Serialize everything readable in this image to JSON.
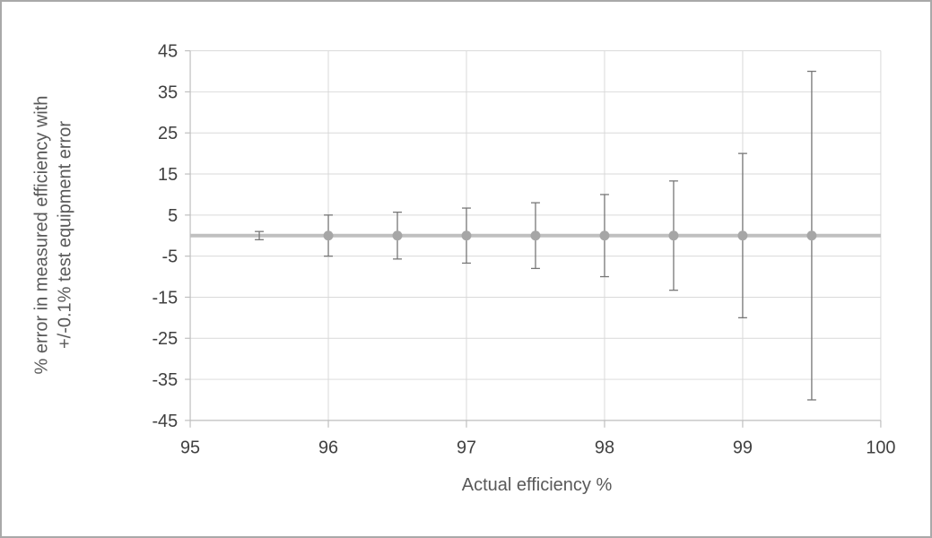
{
  "chart_data": {
    "type": "scatter",
    "title": "",
    "xlabel": "Actual efficiency %",
    "ylabel": "% error in measured efficiency with +/-0.1% test equipment error",
    "ylabel_line1": "% error in measured efficiency with",
    "ylabel_line2": "+/-0.1% test equipment error",
    "xlim": [
      95,
      100
    ],
    "ylim": [
      -45,
      45
    ],
    "x_ticks": [
      95,
      96,
      97,
      98,
      99,
      100
    ],
    "y_ticks": [
      45,
      35,
      25,
      15,
      5,
      -5,
      -15,
      -25,
      -35,
      -45
    ],
    "grid": true,
    "legend": "none",
    "series": [
      {
        "points": [
          {
            "x": 95,
            "y": 0,
            "err": 0,
            "marker": false
          },
          {
            "x": 95.5,
            "y": 0,
            "err": 1,
            "marker": false
          },
          {
            "x": 96,
            "y": 0,
            "err": 5,
            "marker": true
          },
          {
            "x": 96.5,
            "y": 0,
            "err": 5.7,
            "marker": true
          },
          {
            "x": 97,
            "y": 0,
            "err": 6.7,
            "marker": true
          },
          {
            "x": 97.5,
            "y": 0,
            "err": 8,
            "marker": true
          },
          {
            "x": 98,
            "y": 0,
            "err": 10,
            "marker": true
          },
          {
            "x": 98.5,
            "y": 0,
            "err": 13.3,
            "marker": true
          },
          {
            "x": 99,
            "y": 0,
            "err": 20,
            "marker": true
          },
          {
            "x": 99.5,
            "y": 0,
            "err": 40,
            "marker": true
          },
          {
            "x": 100,
            "y": 0,
            "err": 0,
            "marker": false
          }
        ]
      }
    ],
    "style": {
      "grid_color": "#d9d9d9",
      "axis_color": "#bfbfbf",
      "line_color": "#c0c0c0",
      "marker_color": "#a6a6a6",
      "error_bar_color": "#767676",
      "tick_label_color": "#404040",
      "title_color": "#595959"
    }
  }
}
